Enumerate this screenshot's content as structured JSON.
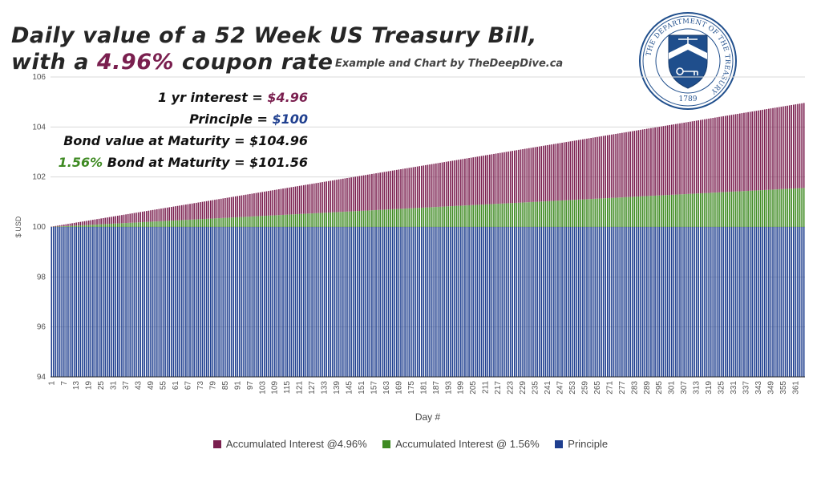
{
  "page": {
    "title_part1": "Daily value of a 52 Week US Treasury Bill,",
    "title_part2": "with a ",
    "title_rate": "4.96%",
    "title_part3": " coupon rate",
    "credit": "Example and Chart by TheDeepDive.ca"
  },
  "notes": {
    "interest_label": "1 yr interest = ",
    "interest_value": "$4.96",
    "principle_label": "Principle = ",
    "principle_value": "$100",
    "bond_value_text": "Bond value at Maturity = $104.96",
    "alt_rate": "1.56%",
    "alt_bond_text": " Bond at Maturity = $101.56"
  },
  "seal": {
    "ring_text": "THE DEPARTMENT OF THE TREASURY",
    "year": "1789"
  },
  "colors": {
    "interest_high": "#7a1f4f",
    "interest_low": "#3e8a22",
    "principle": "#1f3f8f"
  },
  "chart_data": {
    "type": "bar",
    "stacked": true,
    "xlabel": "Day #",
    "ylabel": "$ USD",
    "ylim": [
      94,
      106
    ],
    "yticks": [
      94,
      96,
      98,
      100,
      102,
      104,
      106
    ],
    "x_start": 1,
    "x_end": 365,
    "x_tick_step": 6,
    "grid": true,
    "legend_position": "bottom",
    "series": [
      {
        "name": "Accumulated Interest @4.96%",
        "rate": 4.96,
        "start": 0.0136,
        "end": 4.96
      },
      {
        "name": "Accumulated Interest @ 1.56%",
        "rate": 1.56,
        "start": 0.0043,
        "end": 1.56
      },
      {
        "name": "Principle",
        "value": 100
      }
    ]
  }
}
